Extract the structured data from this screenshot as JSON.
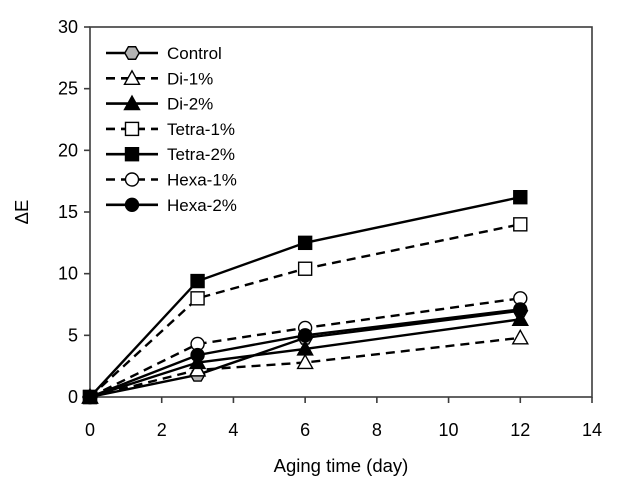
{
  "figure": {
    "background": "#ffffff",
    "axis_color": "#3c3c3c",
    "text_color": "#000000",
    "line_color": "#000000",
    "control_marker_fill": "#b3b3b3",
    "open_marker_fill": "#ffffff",
    "filled_marker_fill": "#000000"
  },
  "chart_data": {
    "type": "line",
    "title": "",
    "xlabel": "Aging time (day)",
    "ylabel": "ΔE",
    "xlim": [
      0,
      14
    ],
    "ylim": [
      0,
      30
    ],
    "xticks": [
      0,
      2,
      4,
      6,
      8,
      10,
      12,
      14
    ],
    "yticks": [
      0,
      5,
      10,
      15,
      20,
      25,
      30
    ],
    "grid": false,
    "legend_position": "upper-left",
    "x": [
      0,
      3,
      6,
      12
    ],
    "series": [
      {
        "name": "Control",
        "values": [
          0,
          1.8,
          4.8,
          7.0
        ],
        "line": "solid",
        "marker": "hexagon",
        "fill": "#b3b3b3"
      },
      {
        "name": "Di-1%",
        "values": [
          0,
          2.2,
          2.8,
          4.8
        ],
        "line": "dashed",
        "marker": "triangle",
        "fill": "#ffffff"
      },
      {
        "name": "Di-2%",
        "values": [
          0,
          2.8,
          3.9,
          6.3
        ],
        "line": "solid",
        "marker": "triangle",
        "fill": "#000000"
      },
      {
        "name": "Tetra-1%",
        "values": [
          0,
          8.0,
          10.4,
          14.0
        ],
        "line": "dashed",
        "marker": "square",
        "fill": "#ffffff"
      },
      {
        "name": "Tetra-2%",
        "values": [
          0,
          9.4,
          12.5,
          16.2
        ],
        "line": "solid",
        "marker": "square",
        "fill": "#000000"
      },
      {
        "name": "Hexa-1%",
        "values": [
          0,
          4.3,
          5.6,
          8.0
        ],
        "line": "dashed",
        "marker": "circle",
        "fill": "#ffffff"
      },
      {
        "name": "Hexa-2%",
        "values": [
          0,
          3.4,
          5.0,
          7.1
        ],
        "line": "solid",
        "marker": "circle",
        "fill": "#000000"
      }
    ]
  }
}
